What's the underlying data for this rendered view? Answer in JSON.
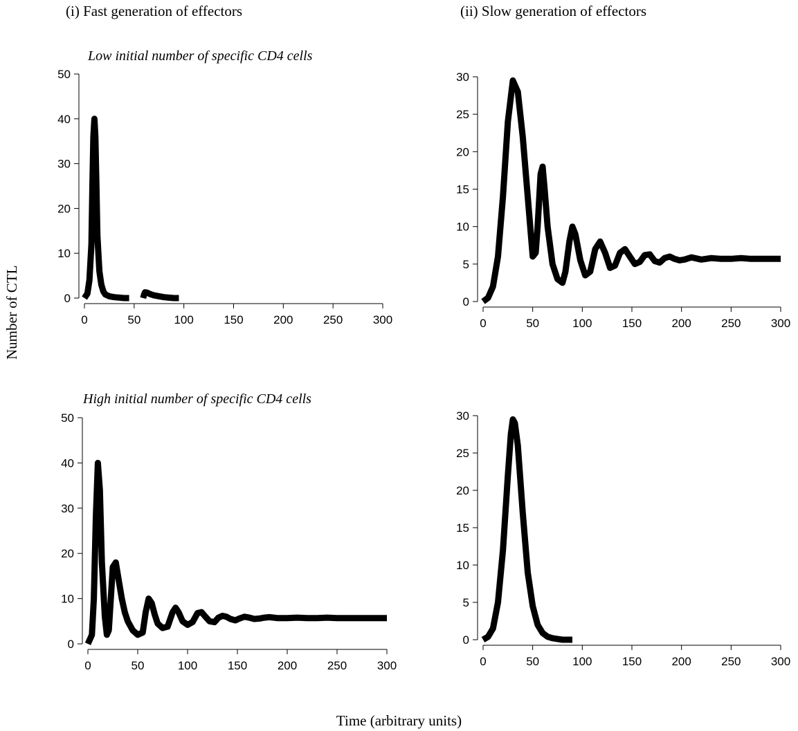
{
  "figure": {
    "col_titles": [
      "(i) Fast generation of effectors",
      "(ii) Slow generation of effectors"
    ],
    "row_titles": [
      "Low initial number of specific CD4 cells",
      "High initial number of specific CD4 cells"
    ],
    "ylabel": "Number of CTL",
    "xlabel": "Time (arbitrary units)",
    "line_color": "#000000"
  },
  "chart_data": [
    {
      "type": "line",
      "title": "",
      "xlim": [
        0,
        300
      ],
      "ylim": [
        0,
        50
      ],
      "xticks": [
        0,
        50,
        100,
        150,
        200,
        250,
        300
      ],
      "yticks": [
        0,
        10,
        20,
        30,
        40,
        50
      ],
      "series": [
        {
          "segments": [
            {
              "x": [
                0,
                3,
                5,
                7,
                8,
                9,
                10,
                11,
                12,
                13,
                15,
                17,
                19,
                21,
                25,
                30,
                40,
                45
              ],
              "y": [
                0,
                1,
                4,
                12,
                25,
                36,
                40,
                36,
                26,
                14,
                6,
                3,
                1.5,
                0.8,
                0.4,
                0.2,
                0,
                0
              ]
            },
            {
              "x": [
                59,
                60,
                61,
                63,
                66,
                70,
                75,
                80,
                85,
                90,
                95
              ],
              "y": [
                0,
                0.8,
                1.3,
                1.2,
                0.9,
                0.6,
                0.4,
                0.2,
                0.1,
                0,
                0
              ]
            }
          ]
        }
      ]
    },
    {
      "type": "line",
      "title": "",
      "xlim": [
        0,
        300
      ],
      "ylim": [
        0,
        30
      ],
      "xticks": [
        0,
        50,
        100,
        150,
        200,
        250,
        300
      ],
      "yticks": [
        0,
        5,
        10,
        15,
        20,
        25,
        30
      ],
      "series": [
        {
          "segments": [
            {
              "x": [
                0,
                5,
                10,
                15,
                20,
                25,
                30,
                35,
                40,
                45,
                50,
                53,
                55,
                58,
                60,
                62,
                65,
                70,
                75,
                80,
                83,
                87,
                90,
                93,
                98,
                103,
                108,
                113,
                118,
                123,
                128,
                133,
                138,
                143,
                148,
                153,
                158,
                163,
                168,
                173,
                178,
                183,
                188,
                193,
                198,
                203,
                210,
                220,
                230,
                240,
                250,
                260,
                270,
                280,
                290,
                300
              ],
              "y": [
                0,
                0.5,
                2,
                6,
                14,
                24,
                29.5,
                28,
                22,
                14,
                6,
                6.5,
                10,
                17,
                18,
                15,
                10,
                5,
                3,
                2.5,
                4,
                8,
                10,
                9,
                5.5,
                3.5,
                4,
                7,
                8,
                6.5,
                4.5,
                4.8,
                6.5,
                7,
                6,
                5,
                5.3,
                6.2,
                6.3,
                5.4,
                5.2,
                5.8,
                6,
                5.7,
                5.5,
                5.6,
                5.9,
                5.6,
                5.8,
                5.7,
                5.7,
                5.8,
                5.7,
                5.7,
                5.7,
                5.7
              ]
            }
          ]
        }
      ]
    },
    {
      "type": "line",
      "title": "",
      "xlim": [
        0,
        300
      ],
      "ylim": [
        0,
        50
      ],
      "xticks": [
        0,
        50,
        100,
        150,
        200,
        250,
        300
      ],
      "yticks": [
        0,
        10,
        20,
        30,
        40,
        50
      ],
      "series": [
        {
          "segments": [
            {
              "x": [
                0,
                4,
                6,
                8,
                10,
                12,
                14,
                17,
                19,
                21,
                23,
                25,
                28,
                31,
                34,
                37,
                40,
                45,
                50,
                55,
                58,
                61,
                64,
                67,
                70,
                75,
                80,
                85,
                88,
                91,
                95,
                100,
                105,
                110,
                114,
                118,
                122,
                127,
                131,
                135,
                139,
                143,
                148,
                152,
                157,
                162,
                167,
                172,
                177,
                182,
                190,
                200,
                210,
                220,
                230,
                240,
                250,
                260,
                270,
                280,
                290,
                300
              ],
              "y": [
                0,
                2,
                10,
                28,
                40,
                34,
                18,
                6,
                2,
                3,
                10,
                17,
                18,
                14,
                10,
                7,
                5,
                3,
                2,
                2.5,
                7,
                10,
                9,
                6.5,
                4.5,
                3.5,
                3.8,
                7,
                8,
                7,
                5,
                4.2,
                4.8,
                6.8,
                7,
                6,
                5,
                4.8,
                5.8,
                6.2,
                6,
                5.5,
                5.2,
                5.6,
                6,
                5.8,
                5.5,
                5.6,
                5.8,
                5.9,
                5.7,
                5.7,
                5.8,
                5.7,
                5.7,
                5.8,
                5.7,
                5.7,
                5.7,
                5.7,
                5.7,
                5.7
              ]
            }
          ]
        }
      ]
    },
    {
      "type": "line",
      "title": "",
      "xlim": [
        0,
        300
      ],
      "ylim": [
        0,
        30
      ],
      "xticks": [
        0,
        50,
        100,
        150,
        200,
        250,
        300
      ],
      "yticks": [
        0,
        5,
        10,
        15,
        20,
        25,
        30
      ],
      "series": [
        {
          "segments": [
            {
              "x": [
                0,
                5,
                10,
                15,
                20,
                25,
                28,
                30,
                32,
                35,
                40,
                45,
                50,
                55,
                60,
                65,
                70,
                75,
                80,
                85,
                90
              ],
              "y": [
                0,
                0.4,
                1.5,
                5,
                12,
                22,
                27.5,
                29.5,
                29,
                26,
                17,
                9,
                4.5,
                2,
                0.9,
                0.4,
                0.2,
                0.1,
                0,
                0,
                0
              ]
            }
          ]
        }
      ]
    }
  ]
}
